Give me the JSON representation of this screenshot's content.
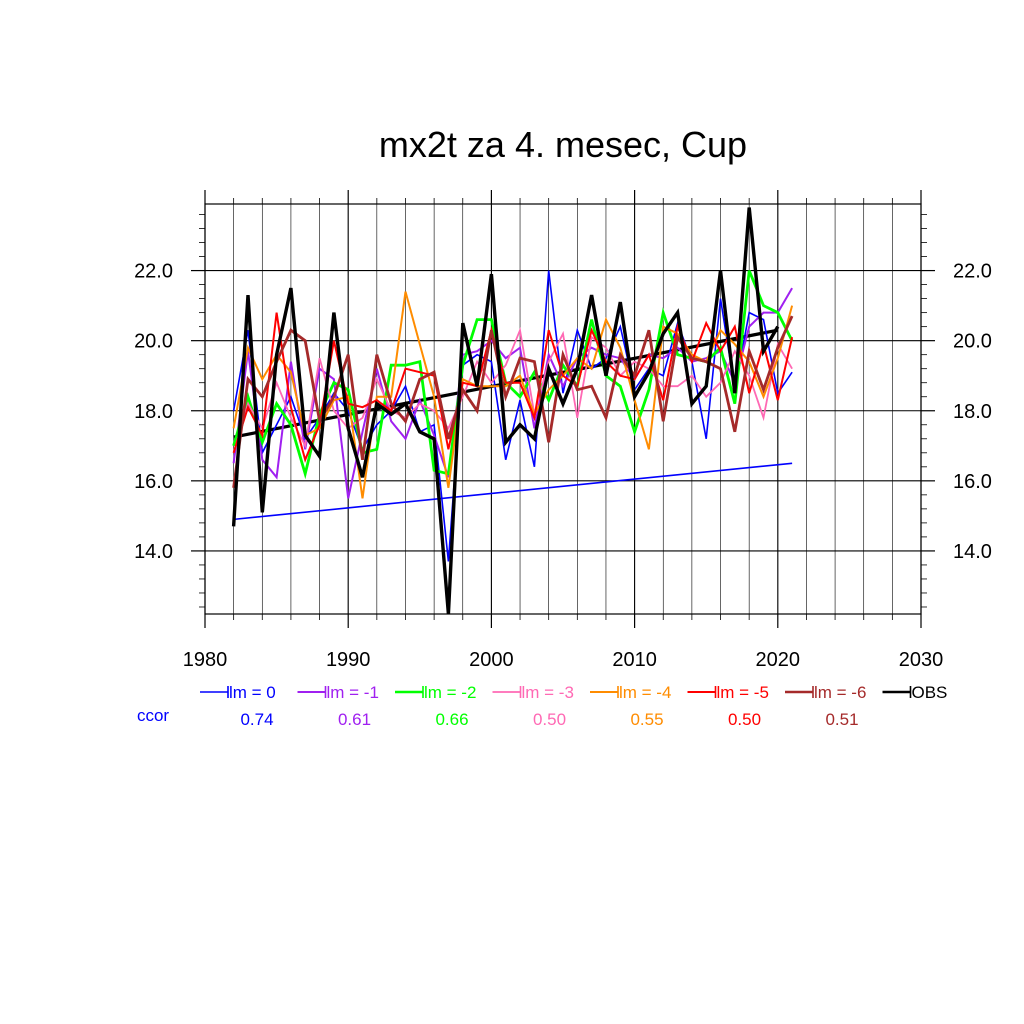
{
  "chart_data": {
    "type": "line",
    "title": "mx2t za 4. mesec, Cup",
    "xlim": [
      1980,
      2030
    ],
    "ylim": [
      12.2,
      23.9
    ],
    "x_ticks": [
      1980,
      1990,
      2000,
      2010,
      2020,
      2030
    ],
    "x_tick_labels": [
      "1980",
      "1990",
      "2000",
      "2010",
      "2020",
      "2030"
    ],
    "y_ticks": [
      14.0,
      16.0,
      18.0,
      20.0,
      22.0
    ],
    "y_tick_labels": [
      "14.0",
      "16.0",
      "18.0",
      "20.0",
      "22.0"
    ],
    "grid": true,
    "legend_position": "bottom",
    "ccor_label": "ccor",
    "ccor_color": "#0000ff",
    "series": [
      {
        "name": "lm = 0",
        "color": "#0000ff",
        "width": 1.6,
        "ccor": "0.74",
        "x": [
          1982,
          1983,
          1984,
          1985,
          1986,
          1987,
          1988,
          1989,
          1990,
          1991,
          1992,
          1993,
          1994,
          1995,
          1996,
          1997,
          1998,
          1999,
          2000,
          2001,
          2002,
          2003,
          2004,
          2005,
          2006,
          2007,
          2008,
          2009,
          2010,
          2011,
          2012,
          2013,
          2014,
          2015,
          2016,
          2017,
          2018,
          2019,
          2020,
          2021
        ],
        "y": [
          18.0,
          20.3,
          16.8,
          17.6,
          18.4,
          17.2,
          17.8,
          18.5,
          18.0,
          16.9,
          17.6,
          18.0,
          18.7,
          17.4,
          17.6,
          13.7,
          19.3,
          19.6,
          19.4,
          16.6,
          18.3,
          16.4,
          22.0,
          18.5,
          20.3,
          19.2,
          19.5,
          20.4,
          18.6,
          19.2,
          19.0,
          20.5,
          19.4,
          17.2,
          21.2,
          18.6,
          20.8,
          20.6,
          18.5,
          19.1
        ]
      },
      {
        "name": "lm = -1",
        "color": "#a020f0",
        "width": 2.0,
        "ccor": "0.61",
        "x": [
          1982,
          1983,
          1984,
          1985,
          1986,
          1987,
          1988,
          1989,
          1990,
          1991,
          1992,
          1993,
          1994,
          1995,
          1996,
          1997,
          1998,
          1999,
          2000,
          2001,
          2002,
          2003,
          2004,
          2005,
          2006,
          2007,
          2008,
          2009,
          2010,
          2011,
          2012,
          2013,
          2014,
          2015,
          2016,
          2017,
          2018,
          2019,
          2020,
          2021
        ],
        "y": [
          16.5,
          19.7,
          16.6,
          16.1,
          19.4,
          16.9,
          19.2,
          18.9,
          15.5,
          17.4,
          19.2,
          17.7,
          17.2,
          18.3,
          17.3,
          16.1,
          19.6,
          19.7,
          20.0,
          19.5,
          19.8,
          17.5,
          19.6,
          18.7,
          19.5,
          19.8,
          19.6,
          19.5,
          18.9,
          19.6,
          19.5,
          19.8,
          19.4,
          19.5,
          19.7,
          18.8,
          20.4,
          20.8,
          20.8,
          21.5
        ]
      },
      {
        "name": "lm = -2",
        "color": "#00ff00",
        "width": 2.8,
        "ccor": "0.66",
        "x": [
          1982,
          1983,
          1984,
          1985,
          1986,
          1987,
          1988,
          1989,
          1990,
          1991,
          1992,
          1993,
          1994,
          1995,
          1996,
          1997,
          1998,
          1999,
          2000,
          2001,
          2002,
          2003,
          2004,
          2005,
          2006,
          2007,
          2008,
          2009,
          2010,
          2011,
          2012,
          2013,
          2014,
          2015,
          2016,
          2017,
          2018,
          2019,
          2020,
          2021
        ],
        "y": [
          17.0,
          18.4,
          17.1,
          18.2,
          17.6,
          16.2,
          17.9,
          18.8,
          18.6,
          16.8,
          16.9,
          19.3,
          19.3,
          19.4,
          16.3,
          16.2,
          19.3,
          20.6,
          20.6,
          18.8,
          18.4,
          19.1,
          18.3,
          19.3,
          18.7,
          20.6,
          19.0,
          18.7,
          17.4,
          18.6,
          20.8,
          19.6,
          19.5,
          19.4,
          19.8,
          18.2,
          22.0,
          21.0,
          20.8,
          20.0
        ]
      },
      {
        "name": "lm = -3",
        "color": "#ff69b4",
        "width": 1.8,
        "ccor": "0.50",
        "x": [
          1982,
          1983,
          1984,
          1985,
          1986,
          1987,
          1988,
          1989,
          1990,
          1991,
          1992,
          1993,
          1994,
          1995,
          1996,
          1997,
          1998,
          1999,
          2000,
          2001,
          2002,
          2003,
          2004,
          2005,
          2006,
          2007,
          2008,
          2009,
          2010,
          2011,
          2012,
          2013,
          2014,
          2015,
          2016,
          2017,
          2018,
          2019,
          2020,
          2021
        ],
        "y": [
          16.8,
          18.2,
          17.5,
          18.8,
          17.8,
          17.0,
          19.5,
          18.0,
          17.5,
          17.8,
          18.9,
          18.0,
          17.8,
          18.2,
          18.0,
          17.5,
          18.4,
          19.4,
          18.8,
          19.3,
          20.3,
          17.9,
          19.4,
          20.2,
          17.8,
          20.1,
          19.8,
          19.0,
          19.4,
          19.2,
          18.7,
          18.7,
          19.0,
          18.4,
          18.8,
          19.7,
          19.0,
          17.8,
          19.9,
          19.2
        ]
      },
      {
        "name": "lm = -4",
        "color": "#ff8c00",
        "width": 2.0,
        "ccor": "0.55",
        "x": [
          1982,
          1983,
          1984,
          1985,
          1986,
          1987,
          1988,
          1989,
          1990,
          1991,
          1992,
          1993,
          1994,
          1995,
          1996,
          1997,
          1998,
          1999,
          2000,
          2001,
          2002,
          2003,
          2004,
          2005,
          2006,
          2007,
          2008,
          2009,
          2010,
          2011,
          2012,
          2013,
          2014,
          2015,
          2016,
          2017,
          2018,
          2019,
          2020,
          2021
        ],
        "y": [
          17.5,
          19.8,
          18.9,
          19.6,
          19.1,
          17.3,
          17.5,
          18.3,
          18.4,
          15.5,
          18.4,
          18.4,
          21.4,
          19.9,
          18.4,
          15.8,
          18.9,
          18.7,
          18.7,
          18.7,
          19.0,
          17.9,
          18.6,
          19.0,
          19.5,
          19.2,
          20.6,
          19.8,
          18.3,
          16.9,
          20.4,
          20.2,
          19.6,
          19.4,
          20.3,
          19.9,
          19.4,
          18.4,
          19.5,
          21.0
        ]
      },
      {
        "name": "lm = -5",
        "color": "#ff0000",
        "width": 2.0,
        "ccor": "0.50",
        "x": [
          1982,
          1983,
          1984,
          1985,
          1986,
          1987,
          1988,
          1989,
          1990,
          1991,
          1992,
          1993,
          1994,
          1995,
          1996,
          1997,
          1998,
          1999,
          2000,
          2001,
          2002,
          2003,
          2004,
          2005,
          2006,
          2007,
          2008,
          2009,
          2010,
          2011,
          2012,
          2013,
          2014,
          2015,
          2016,
          2017,
          2018,
          2019,
          2020,
          2021
        ],
        "y": [
          16.8,
          18.1,
          17.3,
          20.8,
          18.1,
          16.6,
          17.6,
          20.0,
          18.2,
          18.1,
          18.3,
          18.0,
          19.2,
          19.1,
          19.0,
          16.9,
          18.8,
          18.7,
          20.3,
          18.8,
          18.8,
          17.8,
          20.3,
          19.0,
          18.7,
          20.3,
          19.4,
          19.0,
          18.9,
          19.6,
          18.3,
          20.4,
          19.4,
          20.5,
          19.7,
          20.4,
          18.5,
          19.9,
          18.3,
          20.1
        ]
      },
      {
        "name": "lm = -6",
        "color": "#a52a2a",
        "width": 2.8,
        "ccor": "0.51",
        "x": [
          1982,
          1983,
          1984,
          1985,
          1986,
          1987,
          1988,
          1989,
          1990,
          1991,
          1992,
          1993,
          1994,
          1995,
          1996,
          1997,
          1998,
          1999,
          2000,
          2001,
          2002,
          2003,
          2004,
          2005,
          2006,
          2007,
          2008,
          2009,
          2010,
          2011,
          2012,
          2013,
          2014,
          2015,
          2016,
          2017,
          2018,
          2019,
          2020,
          2021
        ],
        "y": [
          15.8,
          18.9,
          18.4,
          19.4,
          20.3,
          20.0,
          17.7,
          18.4,
          19.6,
          16.6,
          19.6,
          18.2,
          17.7,
          18.9,
          19.1,
          17.2,
          18.6,
          18.0,
          20.3,
          18.4,
          19.5,
          19.4,
          17.1,
          19.6,
          18.6,
          18.7,
          17.8,
          19.6,
          19.0,
          20.3,
          17.7,
          20.1,
          19.5,
          19.4,
          19.2,
          17.4,
          19.7,
          18.6,
          19.8,
          20.7
        ]
      },
      {
        "name": "OBS",
        "color": "#000000",
        "width": 3.4,
        "ccor": "",
        "x": [
          1982,
          1983,
          1984,
          1985,
          1986,
          1987,
          1988,
          1989,
          1990,
          1991,
          1992,
          1993,
          1994,
          1995,
          1996,
          1997,
          1998,
          1999,
          2000,
          2001,
          2002,
          2003,
          2004,
          2005,
          2006,
          2007,
          2008,
          2009,
          2010,
          2011,
          2012,
          2013,
          2014,
          2015,
          2016,
          2017,
          2018,
          2019,
          2020
        ],
        "y": [
          14.7,
          21.3,
          15.1,
          19.6,
          21.5,
          17.3,
          16.7,
          20.8,
          17.5,
          16.1,
          18.2,
          17.9,
          18.2,
          17.4,
          17.2,
          12.2,
          20.5,
          18.7,
          21.9,
          17.1,
          17.6,
          17.2,
          19.2,
          18.2,
          19.2,
          21.3,
          19.0,
          21.1,
          18.4,
          19.1,
          20.2,
          20.8,
          18.2,
          18.7,
          22.0,
          18.5,
          23.8,
          19.7,
          20.4
        ]
      }
    ],
    "trend_lines": [
      {
        "color": "#0000ff",
        "width": 1.6,
        "x": [
          1982,
          2021
        ],
        "y": [
          14.9,
          16.5
        ]
      },
      {
        "color": "#000000",
        "width": 3.2,
        "x": [
          1982,
          2020
        ],
        "y": [
          17.25,
          20.3
        ]
      }
    ]
  }
}
